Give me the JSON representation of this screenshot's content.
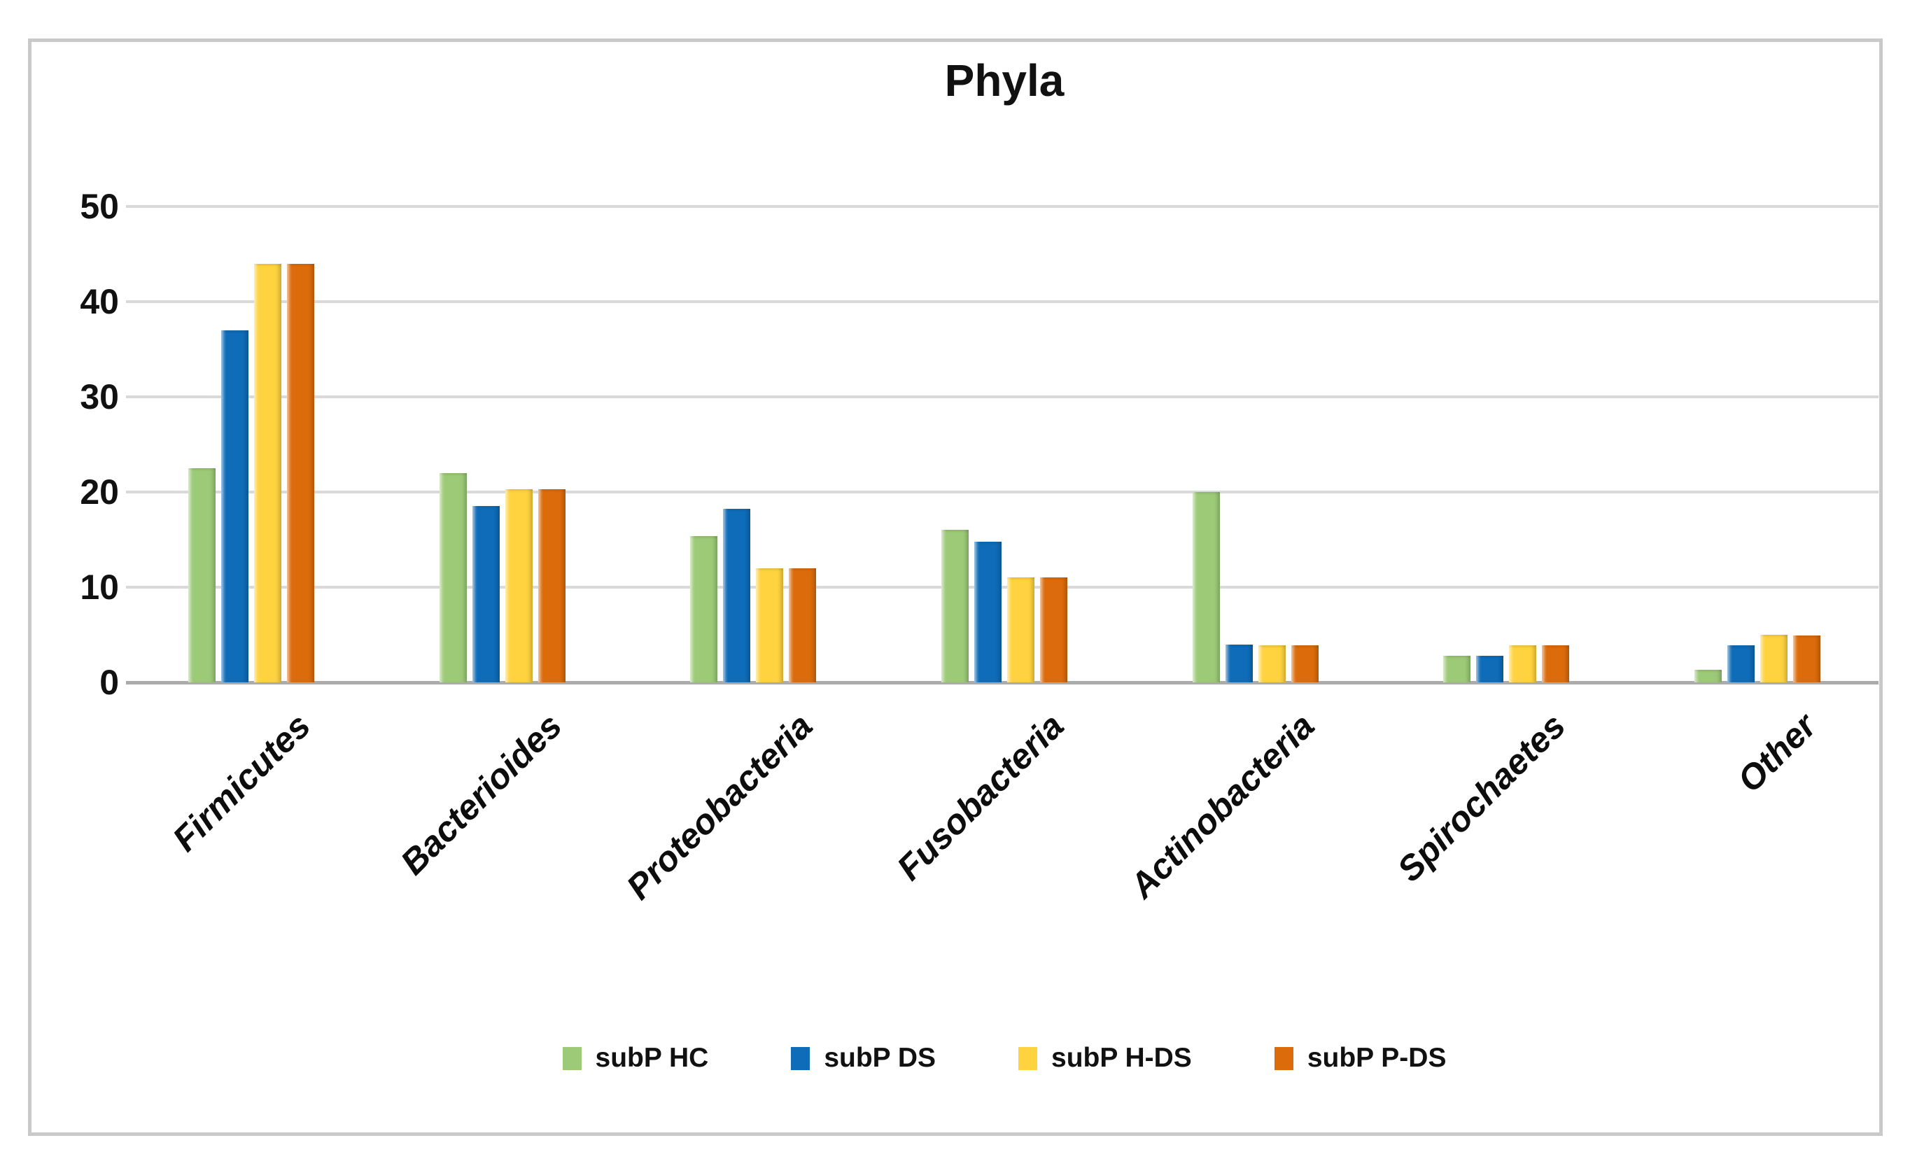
{
  "figure": {
    "title": "Phyla"
  },
  "chart_data": {
    "type": "bar",
    "title": "Phyla",
    "categories": [
      "Firmicutes",
      "Bacterioides",
      "Proteobacteria",
      "Fusobacteria",
      "Actinobacteria",
      "Spirochaetes",
      "Other"
    ],
    "series": [
      {
        "name": "subP HC",
        "color": "#9cca77",
        "values": [
          22.5,
          22.0,
          15.4,
          16.0,
          20.0,
          2.8,
          1.3
        ]
      },
      {
        "name": "subP DS",
        "color": "#0e6cb8",
        "values": [
          37.0,
          18.5,
          18.2,
          14.8,
          4.0,
          2.8,
          3.9
        ]
      },
      {
        "name": "subP H-DS",
        "color": "#ffd23f",
        "values": [
          44.0,
          20.3,
          12.0,
          11.0,
          3.9,
          3.9,
          5.0
        ]
      },
      {
        "name": "subP P-DS",
        "color": "#dc6b0b",
        "values": [
          44.0,
          20.3,
          12.0,
          11.0,
          3.9,
          3.9,
          4.9
        ]
      }
    ],
    "xlabel": "",
    "ylabel": "",
    "ylim": [
      0,
      50
    ],
    "yticks": [
      0,
      10,
      20,
      30,
      40,
      50
    ],
    "grid": true,
    "gridline_color": "#d9d9d9",
    "baseline_color": "#ababab",
    "legend_position": "bottom"
  }
}
